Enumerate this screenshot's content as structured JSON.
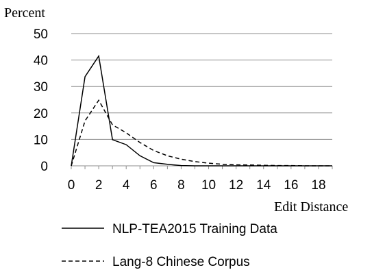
{
  "chart_data": {
    "type": "line",
    "ylabel": "Percent",
    "xlabel": "Edit Distance",
    "ylim": [
      0,
      50
    ],
    "xlim": [
      0,
      19
    ],
    "y_ticks": [
      "0",
      "10",
      "20",
      "30",
      "40",
      "50"
    ],
    "x_ticks": [
      "0",
      "2",
      "4",
      "6",
      "8",
      "10",
      "12",
      "14",
      "16",
      "18"
    ],
    "grid": "horizontal",
    "legend_position": "bottom",
    "x": [
      0,
      1,
      2,
      3,
      4,
      5,
      6,
      7,
      8,
      9,
      10,
      11,
      12,
      13,
      14,
      15,
      16,
      17,
      18,
      19
    ],
    "series": [
      {
        "name": "NLP-TEA2015 Training Data",
        "style": "solid",
        "color": "#000000",
        "values": [
          0,
          33.7,
          41.5,
          9.9,
          8.0,
          3.8,
          1.2,
          0.6,
          0.1,
          0,
          0,
          0,
          0,
          0,
          0,
          0,
          0,
          0,
          0,
          0
        ]
      },
      {
        "name": "Lang-8 Chinese Corpus",
        "style": "dashed",
        "color": "#000000",
        "values": [
          0,
          17.0,
          24.8,
          15.5,
          12.5,
          8.8,
          5.8,
          3.8,
          2.5,
          1.6,
          1.0,
          0.6,
          0.4,
          0.3,
          0.2,
          0.1,
          0.1,
          0,
          0,
          0
        ]
      }
    ]
  }
}
